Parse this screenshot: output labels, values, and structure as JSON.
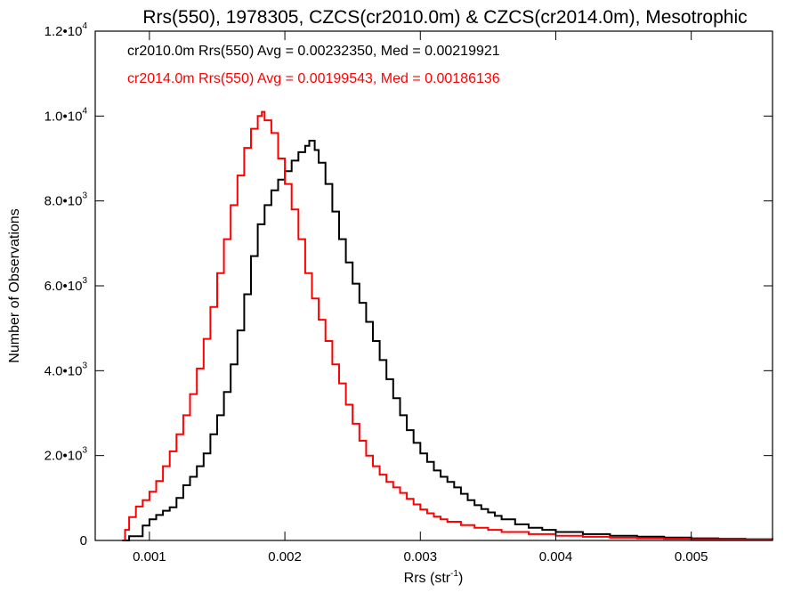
{
  "chart_data": {
    "type": "line",
    "title": "Rrs(550), 1978305, CZCS(cr2010.0m) & CZCS(cr2014.0m), Mesotrophic",
    "xlabel": {
      "base": "Rrs (str",
      "sup": "-1",
      "end": ")"
    },
    "ylabel": "Number of Observations",
    "xlim": [
      0.0006,
      0.0056
    ],
    "ylim": [
      0,
      12000
    ],
    "x_ticks": [
      {
        "value": 0.001,
        "label": "0.001"
      },
      {
        "value": 0.002,
        "label": "0.002"
      },
      {
        "value": 0.003,
        "label": "0.003"
      },
      {
        "value": 0.004,
        "label": "0.004"
      },
      {
        "value": 0.005,
        "label": "0.005"
      }
    ],
    "y_ticks": [
      {
        "value": 0,
        "mantissa": "0",
        "exp": ""
      },
      {
        "value": 2000,
        "mantissa": "2.0•10",
        "exp": "3"
      },
      {
        "value": 4000,
        "mantissa": "4.0•10",
        "exp": "3"
      },
      {
        "value": 6000,
        "mantissa": "6.0•10",
        "exp": "3"
      },
      {
        "value": 8000,
        "mantissa": "8.0•10",
        "exp": "3"
      },
      {
        "value": 10000,
        "mantissa": "1.0•10",
        "exp": "4"
      },
      {
        "value": 12000,
        "mantissa": "1.2•10",
        "exp": "4"
      }
    ],
    "legend_placement": "top-left",
    "grid": false,
    "step": true,
    "series": [
      {
        "name": "cr2010.0m",
        "legend": "cr2010.0m Rrs(550) Avg = 0.00232350, Med = 0.00219921",
        "color": "#000000",
        "points": [
          [
            0.0008,
            0
          ],
          [
            0.00085,
            100
          ],
          [
            0.00095,
            350
          ],
          [
            0.001,
            500
          ],
          [
            0.00105,
            600
          ],
          [
            0.0011,
            700
          ],
          [
            0.00115,
            780
          ],
          [
            0.0012,
            1000
          ],
          [
            0.00125,
            1300
          ],
          [
            0.0013,
            1500
          ],
          [
            0.00135,
            1750
          ],
          [
            0.0014,
            2050
          ],
          [
            0.00145,
            2500
          ],
          [
            0.0015,
            2950
          ],
          [
            0.00155,
            3500
          ],
          [
            0.0016,
            4150
          ],
          [
            0.00165,
            4950
          ],
          [
            0.0017,
            5800
          ],
          [
            0.00175,
            6700
          ],
          [
            0.0018,
            7450
          ],
          [
            0.00185,
            7900
          ],
          [
            0.0019,
            8250
          ],
          [
            0.00195,
            8500
          ],
          [
            0.002,
            8700
          ],
          [
            0.00205,
            8950
          ],
          [
            0.0021,
            9150
          ],
          [
            0.00215,
            9300
          ],
          [
            0.00218,
            9420
          ],
          [
            0.00222,
            9200
          ],
          [
            0.00225,
            8900
          ],
          [
            0.0023,
            8400
          ],
          [
            0.00235,
            7750
          ],
          [
            0.0024,
            7100
          ],
          [
            0.00245,
            6550
          ],
          [
            0.0025,
            6050
          ],
          [
            0.00255,
            5600
          ],
          [
            0.0026,
            5150
          ],
          [
            0.00265,
            4700
          ],
          [
            0.0027,
            4250
          ],
          [
            0.00275,
            3800
          ],
          [
            0.0028,
            3350
          ],
          [
            0.00285,
            2950
          ],
          [
            0.0029,
            2600
          ],
          [
            0.00295,
            2300
          ],
          [
            0.003,
            2050
          ],
          [
            0.00305,
            1850
          ],
          [
            0.0031,
            1650
          ],
          [
            0.00315,
            1500
          ],
          [
            0.0032,
            1380
          ],
          [
            0.00325,
            1250
          ],
          [
            0.0033,
            1100
          ],
          [
            0.00335,
            950
          ],
          [
            0.0034,
            830
          ],
          [
            0.00345,
            740
          ],
          [
            0.0035,
            660
          ],
          [
            0.00355,
            580
          ],
          [
            0.0036,
            500
          ],
          [
            0.0037,
            380
          ],
          [
            0.0038,
            300
          ],
          [
            0.0039,
            250
          ],
          [
            0.004,
            200
          ],
          [
            0.0042,
            150
          ],
          [
            0.0044,
            110
          ],
          [
            0.0046,
            90
          ],
          [
            0.0048,
            70
          ],
          [
            0.005,
            50
          ],
          [
            0.0052,
            40
          ],
          [
            0.0054,
            30
          ],
          [
            0.0056,
            20
          ]
        ]
      },
      {
        "name": "cr2014.0m",
        "legend": "cr2014.0m Rrs(550) Avg = 0.00199543, Med = 0.00186136",
        "color": "#ff0000",
        "points": [
          [
            0.0008,
            0
          ],
          [
            0.00082,
            250
          ],
          [
            0.00085,
            550
          ],
          [
            0.0009,
            800
          ],
          [
            0.00095,
            950
          ],
          [
            0.001,
            1150
          ],
          [
            0.00105,
            1400
          ],
          [
            0.0011,
            1750
          ],
          [
            0.00115,
            2100
          ],
          [
            0.0012,
            2500
          ],
          [
            0.00125,
            2950
          ],
          [
            0.0013,
            3450
          ],
          [
            0.00135,
            4050
          ],
          [
            0.0014,
            4750
          ],
          [
            0.00145,
            5500
          ],
          [
            0.0015,
            6300
          ],
          [
            0.00155,
            7100
          ],
          [
            0.0016,
            7900
          ],
          [
            0.00165,
            8600
          ],
          [
            0.0017,
            9250
          ],
          [
            0.00175,
            9700
          ],
          [
            0.0018,
            10000
          ],
          [
            0.00183,
            10100
          ],
          [
            0.00185,
            9900
          ],
          [
            0.0019,
            9600
          ],
          [
            0.00195,
            9000
          ],
          [
            0.002,
            8400
          ],
          [
            0.00205,
            7800
          ],
          [
            0.0021,
            7100
          ],
          [
            0.00215,
            6300
          ],
          [
            0.0022,
            5700
          ],
          [
            0.00225,
            5200
          ],
          [
            0.0023,
            4700
          ],
          [
            0.00235,
            4150
          ],
          [
            0.0024,
            3700
          ],
          [
            0.00245,
            3200
          ],
          [
            0.0025,
            2750
          ],
          [
            0.00255,
            2350
          ],
          [
            0.0026,
            2000
          ],
          [
            0.00265,
            1750
          ],
          [
            0.0027,
            1550
          ],
          [
            0.00275,
            1380
          ],
          [
            0.0028,
            1250
          ],
          [
            0.00285,
            1120
          ],
          [
            0.0029,
            980
          ],
          [
            0.00295,
            850
          ],
          [
            0.003,
            730
          ],
          [
            0.00305,
            640
          ],
          [
            0.0031,
            560
          ],
          [
            0.00315,
            500
          ],
          [
            0.0032,
            440
          ],
          [
            0.0033,
            360
          ],
          [
            0.0034,
            300
          ],
          [
            0.0035,
            250
          ],
          [
            0.0036,
            200
          ],
          [
            0.0038,
            150
          ],
          [
            0.004,
            110
          ],
          [
            0.0042,
            85
          ],
          [
            0.0044,
            65
          ],
          [
            0.0046,
            50
          ],
          [
            0.0048,
            40
          ],
          [
            0.005,
            30
          ],
          [
            0.0052,
            25
          ],
          [
            0.0054,
            20
          ],
          [
            0.0056,
            15
          ]
        ]
      }
    ]
  }
}
